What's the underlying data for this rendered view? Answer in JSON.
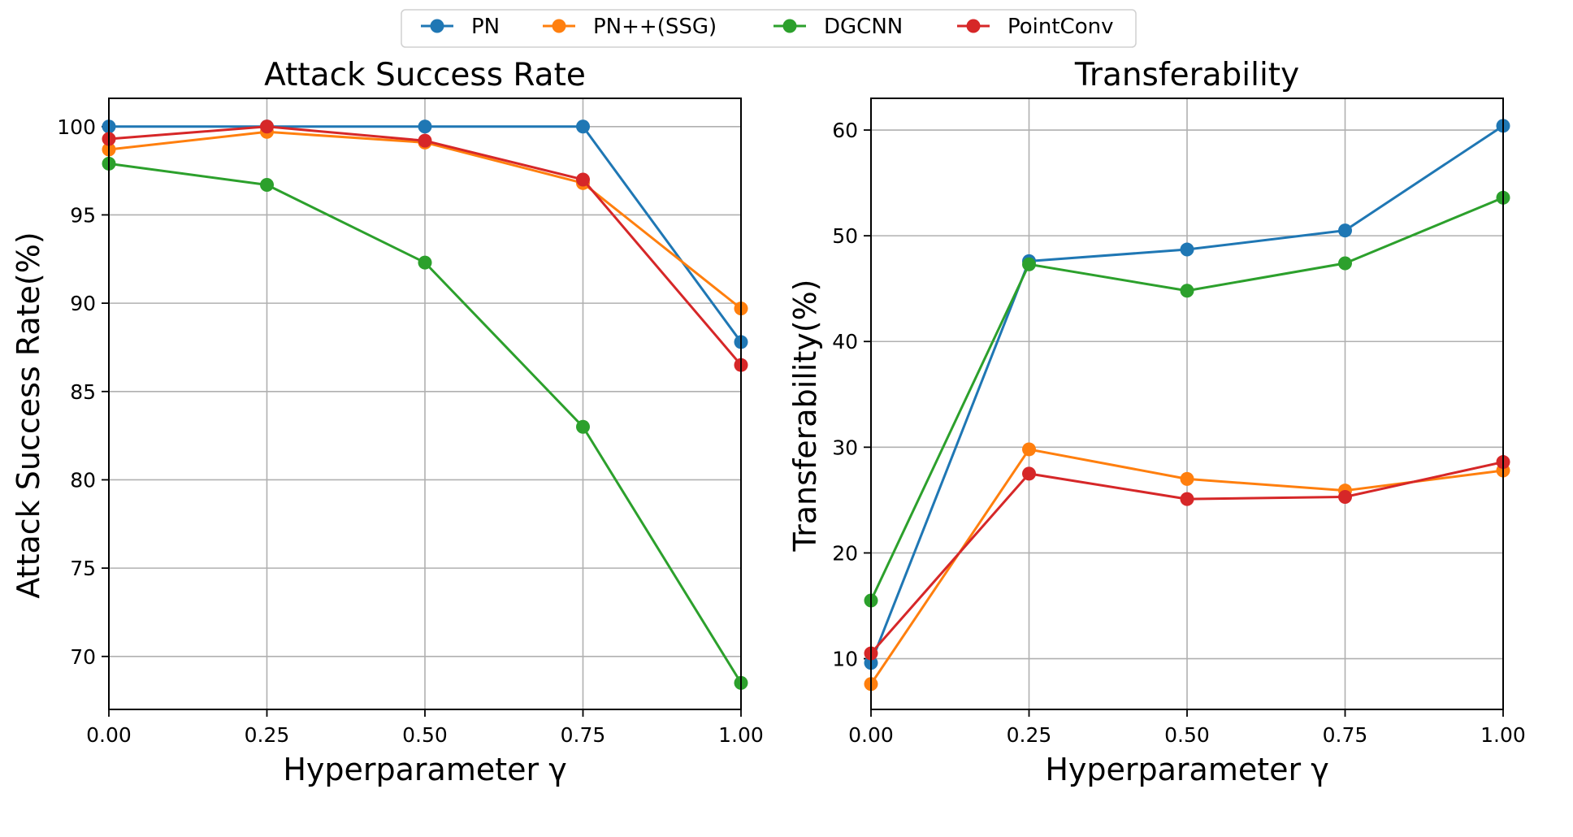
{
  "legend": {
    "entries": [
      {
        "name": "PN",
        "color": "#1f77b4"
      },
      {
        "name": "PN++(SSG)",
        "color": "#ff7f0e"
      },
      {
        "name": "DGCNN",
        "color": "#2ca02c"
      },
      {
        "name": "PointConv",
        "color": "#d62728"
      }
    ]
  },
  "chart_data": [
    {
      "type": "line",
      "title": "Attack Success Rate",
      "xlabel": "Hyperparameter γ",
      "ylabel": "Attack Success Rate(%)",
      "x": [
        0.0,
        0.25,
        0.5,
        0.75,
        1.0
      ],
      "xticks": [
        "0.00",
        "0.25",
        "0.50",
        "0.75",
        "1.00"
      ],
      "yticks": [
        70,
        75,
        80,
        85,
        90,
        95,
        100
      ],
      "xlim": [
        0,
        1
      ],
      "ylim": [
        67,
        101.6
      ],
      "grid": true,
      "series": [
        {
          "name": "PN",
          "color": "#1f77b4",
          "values": [
            100.0,
            100.0,
            100.0,
            100.0,
            87.8
          ]
        },
        {
          "name": "PN++(SSG)",
          "color": "#ff7f0e",
          "values": [
            98.7,
            99.7,
            99.1,
            96.8,
            89.7
          ]
        },
        {
          "name": "DGCNN",
          "color": "#2ca02c",
          "values": [
            97.9,
            96.7,
            92.3,
            83.0,
            68.5
          ]
        },
        {
          "name": "PointConv",
          "color": "#d62728",
          "values": [
            99.3,
            100.0,
            99.2,
            97.0,
            86.5
          ]
        }
      ]
    },
    {
      "type": "line",
      "title": "Transferability",
      "xlabel": "Hyperparameter γ",
      "ylabel": "Transferability(%)",
      "x": [
        0.0,
        0.25,
        0.5,
        0.75,
        1.0
      ],
      "xticks": [
        "0.00",
        "0.25",
        "0.50",
        "0.75",
        "1.00"
      ],
      "yticks": [
        10,
        20,
        30,
        40,
        50,
        60
      ],
      "xlim": [
        0,
        1
      ],
      "ylim": [
        5.2,
        63.0
      ],
      "grid": true,
      "series": [
        {
          "name": "PN",
          "color": "#1f77b4",
          "values": [
            9.6,
            47.6,
            48.7,
            50.5,
            60.4
          ]
        },
        {
          "name": "PN++(SSG)",
          "color": "#ff7f0e",
          "values": [
            7.6,
            29.8,
            27.0,
            25.9,
            27.8
          ]
        },
        {
          "name": "DGCNN",
          "color": "#2ca02c",
          "values": [
            15.5,
            47.3,
            44.8,
            47.4,
            53.6
          ]
        },
        {
          "name": "PointConv",
          "color": "#d62728",
          "values": [
            10.5,
            27.5,
            25.1,
            25.3,
            28.6
          ]
        }
      ]
    }
  ]
}
